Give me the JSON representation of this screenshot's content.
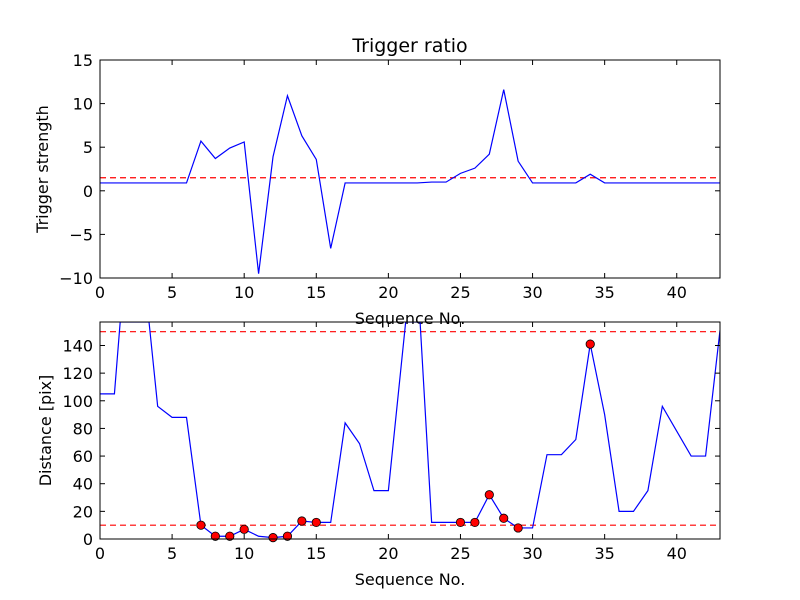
{
  "chart_data": [
    {
      "type": "line",
      "title": "Trigger ratio",
      "xlabel": "Sequence No.",
      "ylabel": "Trigger strength",
      "xlim": [
        0,
        43
      ],
      "ylim": [
        -10,
        15
      ],
      "xticks": [
        0,
        5,
        10,
        15,
        20,
        25,
        30,
        35,
        40
      ],
      "yticks": [
        -10,
        -5,
        0,
        5,
        10,
        15
      ],
      "threshold": 1.5,
      "line_color": "#0000ff",
      "threshold_color": "#ff0000",
      "x": [
        0,
        1,
        2,
        3,
        4,
        5,
        6,
        7,
        8,
        9,
        10,
        11,
        12,
        13,
        14,
        15,
        16,
        17,
        18,
        19,
        20,
        21,
        22,
        23,
        24,
        25,
        26,
        27,
        28,
        29,
        30,
        31,
        32,
        33,
        34,
        35,
        36,
        37,
        38,
        39,
        40,
        41,
        42,
        43
      ],
      "y": [
        0.9,
        0.9,
        0.9,
        0.9,
        0.9,
        0.9,
        0.9,
        5.7,
        3.7,
        4.9,
        5.6,
        -9.5,
        3.9,
        10.9,
        6.3,
        3.6,
        -6.6,
        0.9,
        0.9,
        0.9,
        0.9,
        0.9,
        0.9,
        1.0,
        1.0,
        2.0,
        2.6,
        4.2,
        11.6,
        3.4,
        0.9,
        0.9,
        0.9,
        0.9,
        1.9,
        0.9,
        0.9,
        0.9,
        0.9,
        0.9,
        0.9,
        0.9,
        0.9,
        0.9
      ]
    },
    {
      "type": "line",
      "title": "",
      "xlabel": "Sequence No.",
      "ylabel": "Distance [pix]",
      "xlim": [
        0,
        43
      ],
      "ylim": [
        0,
        157
      ],
      "xticks": [
        0,
        5,
        10,
        15,
        20,
        25,
        30,
        35,
        40
      ],
      "yticks": [
        0,
        20,
        40,
        60,
        80,
        100,
        120,
        140
      ],
      "thresholds": [
        10,
        150
      ],
      "line_color": "#0000ff",
      "threshold_color": "#ff0000",
      "marker_color": "#ff0000",
      "x": [
        0,
        1,
        1.4,
        3.4,
        4,
        5,
        6,
        7,
        8,
        9,
        10,
        11,
        12,
        13,
        14,
        15,
        16,
        17,
        18,
        19,
        20,
        21.2,
        22.2,
        23,
        24,
        25,
        26,
        27,
        28,
        29,
        30,
        31,
        32,
        33,
        34,
        35,
        36,
        37,
        38,
        39,
        40,
        41,
        42,
        43
      ],
      "y": [
        105,
        105,
        157,
        157,
        96,
        88,
        88,
        10,
        2,
        2,
        7,
        2,
        1,
        2,
        13,
        12,
        12,
        84,
        69,
        35,
        35,
        157,
        157,
        12,
        12,
        12,
        12,
        32,
        15,
        8,
        8,
        61,
        61,
        72,
        141,
        90,
        20,
        20,
        35,
        96,
        78,
        60,
        60,
        151
      ],
      "markers": {
        "x": [
          7,
          8,
          9,
          10,
          12,
          13,
          14,
          15,
          25,
          26,
          27,
          28,
          29,
          34
        ],
        "y": [
          10,
          2,
          2,
          7,
          1,
          2,
          13,
          12,
          12,
          12,
          32,
          15,
          8,
          141
        ]
      }
    }
  ]
}
